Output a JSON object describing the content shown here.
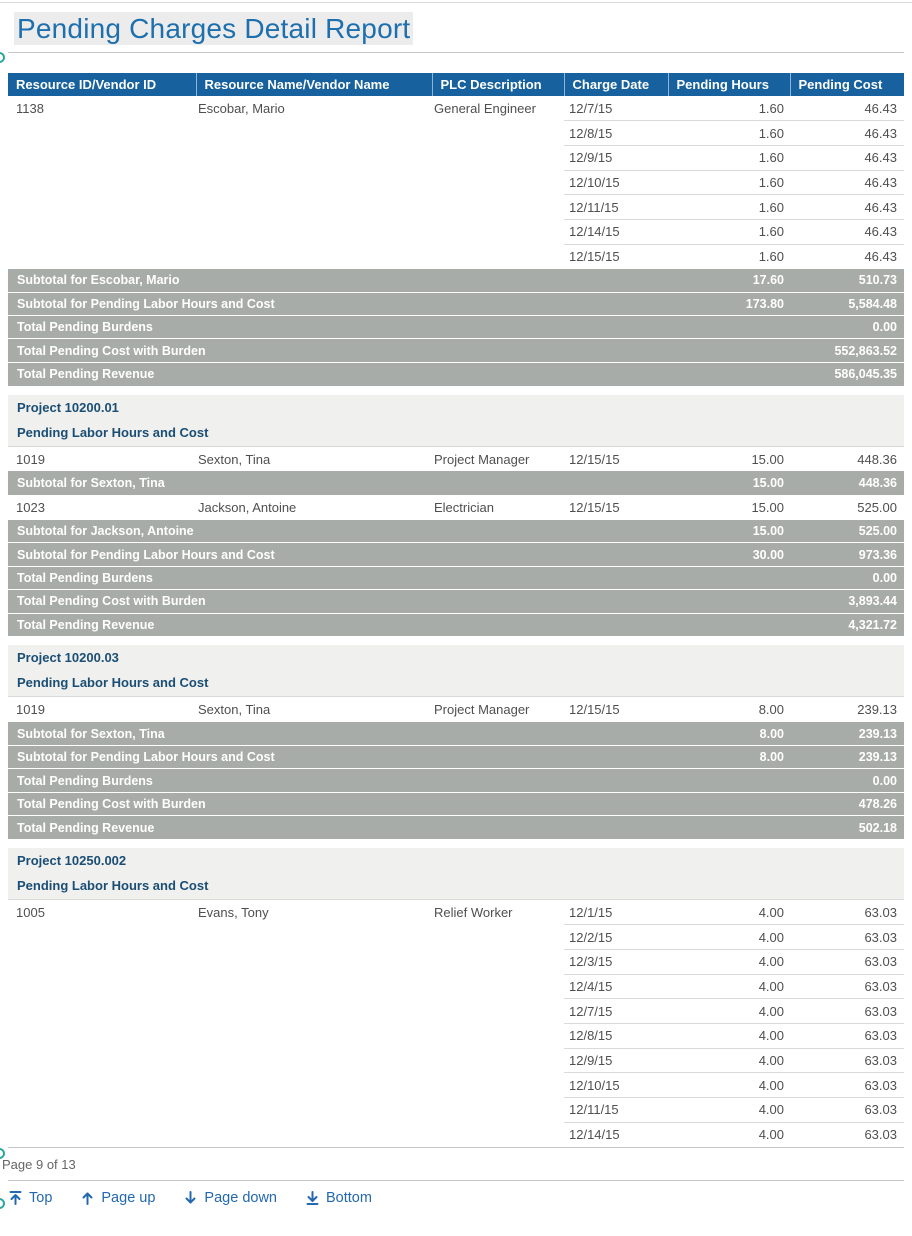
{
  "title": "Pending Charges Detail Report",
  "table": {
    "columns": [
      "Resource ID/Vendor ID",
      "Resource Name/Vendor Name",
      "PLC Description",
      "Charge Date",
      "Pending Hours",
      "Pending Cost"
    ],
    "blocks": [
      {
        "type": "entry",
        "id": "1138",
        "name": "Escobar, Mario",
        "plc": "General Engineer",
        "charges": [
          [
            "12/7/15",
            "1.60",
            "46.43"
          ],
          [
            "12/8/15",
            "1.60",
            "46.43"
          ],
          [
            "12/9/15",
            "1.60",
            "46.43"
          ],
          [
            "12/10/15",
            "1.60",
            "46.43"
          ],
          [
            "12/11/15",
            "1.60",
            "46.43"
          ],
          [
            "12/14/15",
            "1.60",
            "46.43"
          ],
          [
            "12/15/15",
            "1.60",
            "46.43"
          ]
        ]
      },
      {
        "type": "summary",
        "rows": [
          [
            "Subtotal for Escobar, Mario",
            "17.60",
            "510.73"
          ],
          [
            "Subtotal for Pending Labor Hours and Cost",
            "173.80",
            "5,584.48"
          ],
          [
            "Total Pending Burdens",
            "",
            "0.00"
          ],
          [
            "Total Pending Cost with Burden",
            "",
            "552,863.52"
          ],
          [
            "Total Pending Revenue",
            "",
            "586,045.35"
          ]
        ]
      },
      {
        "type": "section",
        "project": "Project 10200.01",
        "subtitle": "Pending Labor Hours and Cost"
      },
      {
        "type": "entry",
        "id": "1019",
        "name": "Sexton, Tina",
        "plc": "Project Manager",
        "charges": [
          [
            "12/15/15",
            "15.00",
            "448.36"
          ]
        ]
      },
      {
        "type": "summary",
        "rows": [
          [
            "Subtotal for Sexton, Tina",
            "15.00",
            "448.36"
          ]
        ]
      },
      {
        "type": "entry",
        "id": "1023",
        "name": "Jackson, Antoine",
        "plc": "Electrician",
        "charges": [
          [
            "12/15/15",
            "15.00",
            "525.00"
          ]
        ]
      },
      {
        "type": "summary",
        "rows": [
          [
            "Subtotal for Jackson, Antoine",
            "15.00",
            "525.00"
          ],
          [
            "Subtotal for Pending Labor Hours and Cost",
            "30.00",
            "973.36"
          ],
          [
            "Total Pending Burdens",
            "",
            "0.00"
          ],
          [
            "Total Pending Cost with Burden",
            "",
            "3,893.44"
          ],
          [
            "Total Pending Revenue",
            "",
            "4,321.72"
          ]
        ]
      },
      {
        "type": "section",
        "project": "Project 10200.03",
        "subtitle": "Pending Labor Hours and Cost"
      },
      {
        "type": "entry",
        "id": "1019",
        "name": "Sexton, Tina",
        "plc": "Project Manager",
        "charges": [
          [
            "12/15/15",
            "8.00",
            "239.13"
          ]
        ]
      },
      {
        "type": "summary",
        "rows": [
          [
            "Subtotal for Sexton, Tina",
            "8.00",
            "239.13"
          ],
          [
            "Subtotal for Pending Labor Hours and Cost",
            "8.00",
            "239.13"
          ],
          [
            "Total Pending Burdens",
            "",
            "0.00"
          ],
          [
            "Total Pending Cost with Burden",
            "",
            "478.26"
          ],
          [
            "Total Pending Revenue",
            "",
            "502.18"
          ]
        ]
      },
      {
        "type": "section",
        "project": "Project 10250.002",
        "subtitle": "Pending Labor Hours and Cost"
      },
      {
        "type": "entry",
        "id": "1005",
        "name": "Evans, Tony",
        "plc": "Relief Worker",
        "charges": [
          [
            "12/1/15",
            "4.00",
            "63.03"
          ],
          [
            "12/2/15",
            "4.00",
            "63.03"
          ],
          [
            "12/3/15",
            "4.00",
            "63.03"
          ],
          [
            "12/4/15",
            "4.00",
            "63.03"
          ],
          [
            "12/7/15",
            "4.00",
            "63.03"
          ],
          [
            "12/8/15",
            "4.00",
            "63.03"
          ],
          [
            "12/9/15",
            "4.00",
            "63.03"
          ],
          [
            "12/10/15",
            "4.00",
            "63.03"
          ],
          [
            "12/11/15",
            "4.00",
            "63.03"
          ],
          [
            "12/14/15",
            "4.00",
            "63.03"
          ]
        ]
      }
    ]
  },
  "footer": {
    "page_indicator": "Page 9 of 13"
  },
  "nav": {
    "items": [
      {
        "label": "Top"
      },
      {
        "label": "Page up"
      },
      {
        "label": "Page down"
      },
      {
        "label": "Bottom"
      }
    ]
  },
  "colors": {
    "header_bg": "#17619E",
    "header_sep": "#8FB3D4",
    "title": "#1D6FAD",
    "section_heading": "#1B4E75",
    "summary_bg": "#A8ACA8",
    "link": "#2368B0",
    "anchor": "#2BA89E",
    "body_text": "#4F4F4F",
    "row_line": "#DADADA"
  }
}
